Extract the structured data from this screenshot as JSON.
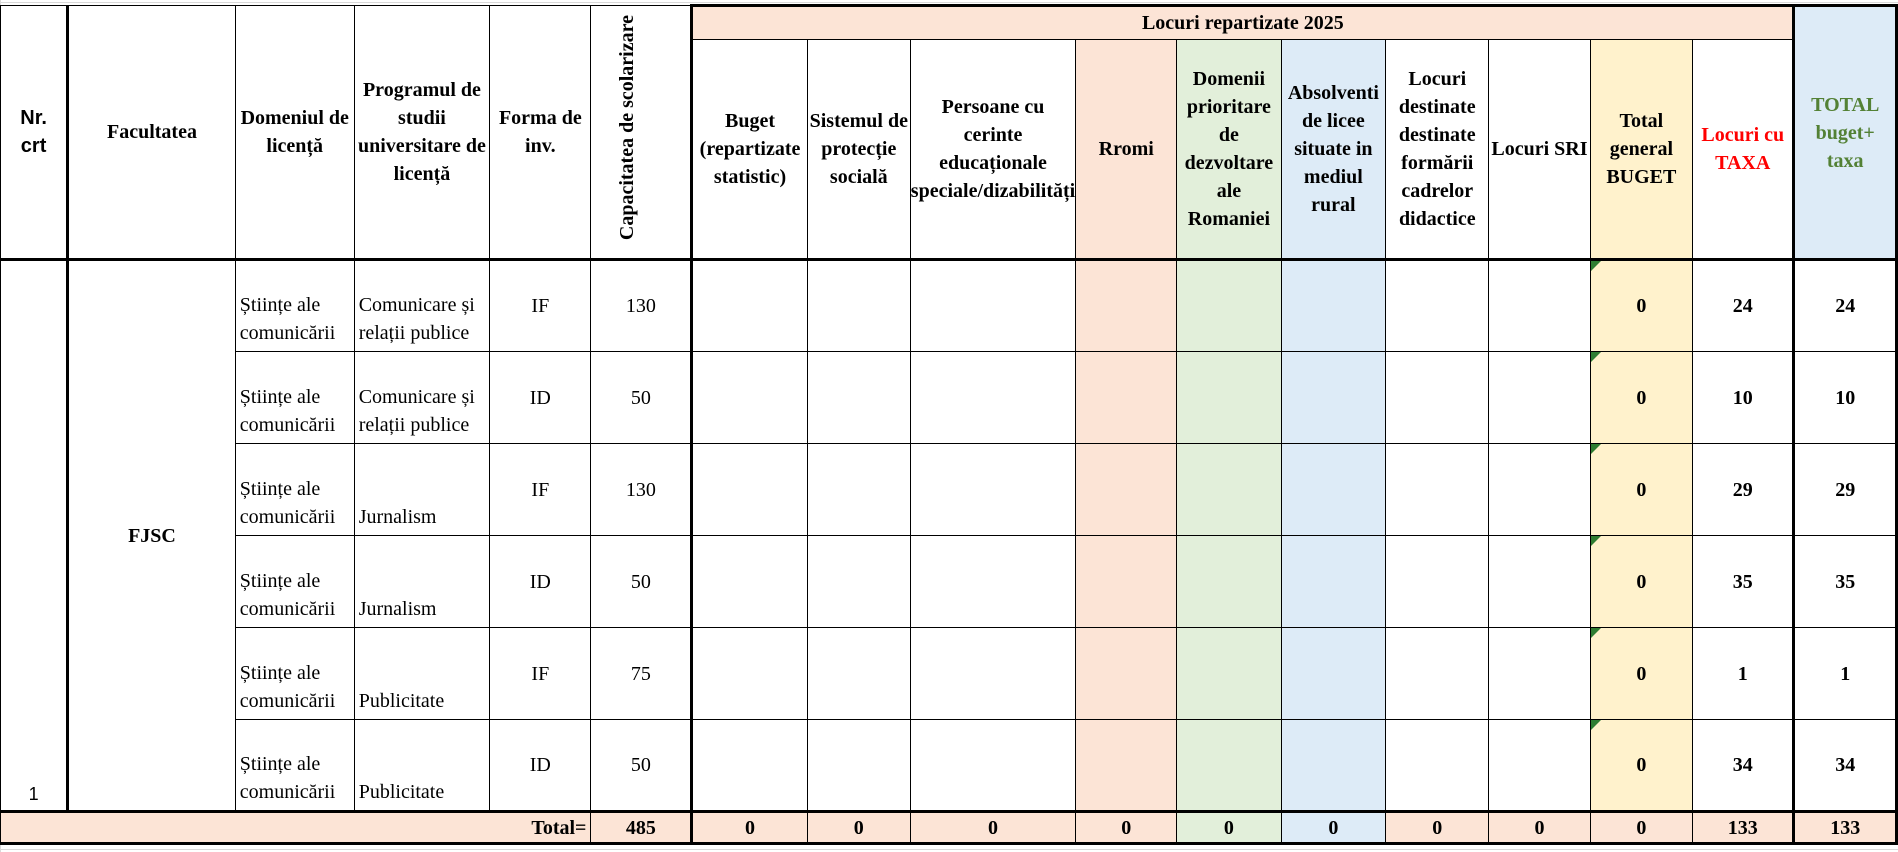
{
  "header": {
    "nr_crt": "Nr. crt",
    "facultatea": "Facultatea",
    "domeniul": "Domeniul de licență",
    "programul": "Programul de studii universitare de licență",
    "forma": "Forma de inv.",
    "capacitatea": "Capacitatea de scolarizare",
    "locuri_title": "Locuri repartizate  2025",
    "buget": "Buget (repartizate statistic)",
    "protectie": "Sistemul de protecție socială",
    "cerinte": "Persoane cu cerinte educaționale speciale/dizabilități",
    "rromi": "Rromi",
    "domenii": "Domenii prioritare de dezvoltare ale Romaniei",
    "absolventi": "Absolventi de licee situate in mediul rural",
    "didactice": "Locuri destinate destinate formării cadrelor didactice",
    "sri": "Locuri SRI",
    "total_buget": "Total general BUGET",
    "taxa": "Locuri cu TAXA",
    "total_all": "TOTAL buget+ taxa"
  },
  "faculty": {
    "nr": "1",
    "name": "FJSC"
  },
  "rows": [
    {
      "domeniul": "Științe ale comunicării",
      "program": "Comunicare și relații publice",
      "forma": "IF",
      "capacitate": "130",
      "total_buget": "0",
      "taxa": "24",
      "total": "24"
    },
    {
      "domeniul": "Științe ale comunicării",
      "program": "Comunicare și relații publice",
      "forma": "ID",
      "capacitate": "50",
      "total_buget": "0",
      "taxa": "10",
      "total": "10"
    },
    {
      "domeniul": "Științe ale comunicării",
      "program": "Jurnalism",
      "forma": "IF",
      "capacitate": "130",
      "total_buget": "0",
      "taxa": "29",
      "total": "29"
    },
    {
      "domeniul": "Științe ale comunicării",
      "program": "Jurnalism",
      "forma": "ID",
      "capacitate": "50",
      "total_buget": "0",
      "taxa": "35",
      "total": "35"
    },
    {
      "domeniul": "Științe ale comunicării",
      "program": "Publicitate",
      "forma": "IF",
      "capacitate": "75",
      "total_buget": "0",
      "taxa": "1",
      "total": "1"
    },
    {
      "domeniul": "Științe ale comunicării",
      "program": "Publicitate",
      "forma": "ID",
      "capacitate": "50",
      "total_buget": "0",
      "taxa": "34",
      "total": "34"
    }
  ],
  "totals": {
    "label": "Total=",
    "capacitate": "485",
    "buget": "0",
    "protectie": "0",
    "cerinte": "0",
    "rromi": "0",
    "domenii": "0",
    "absolventi": "0",
    "didactice": "0",
    "sri": "0",
    "total_buget": "0",
    "taxa": "133",
    "total_all": "133"
  },
  "colors": {
    "peach": "#fce4d6",
    "green": "#e2efda",
    "blue": "#ddebf7",
    "yellow": "#fff2cc",
    "taxa_text": "#ff0000",
    "total_text": "#538135"
  }
}
